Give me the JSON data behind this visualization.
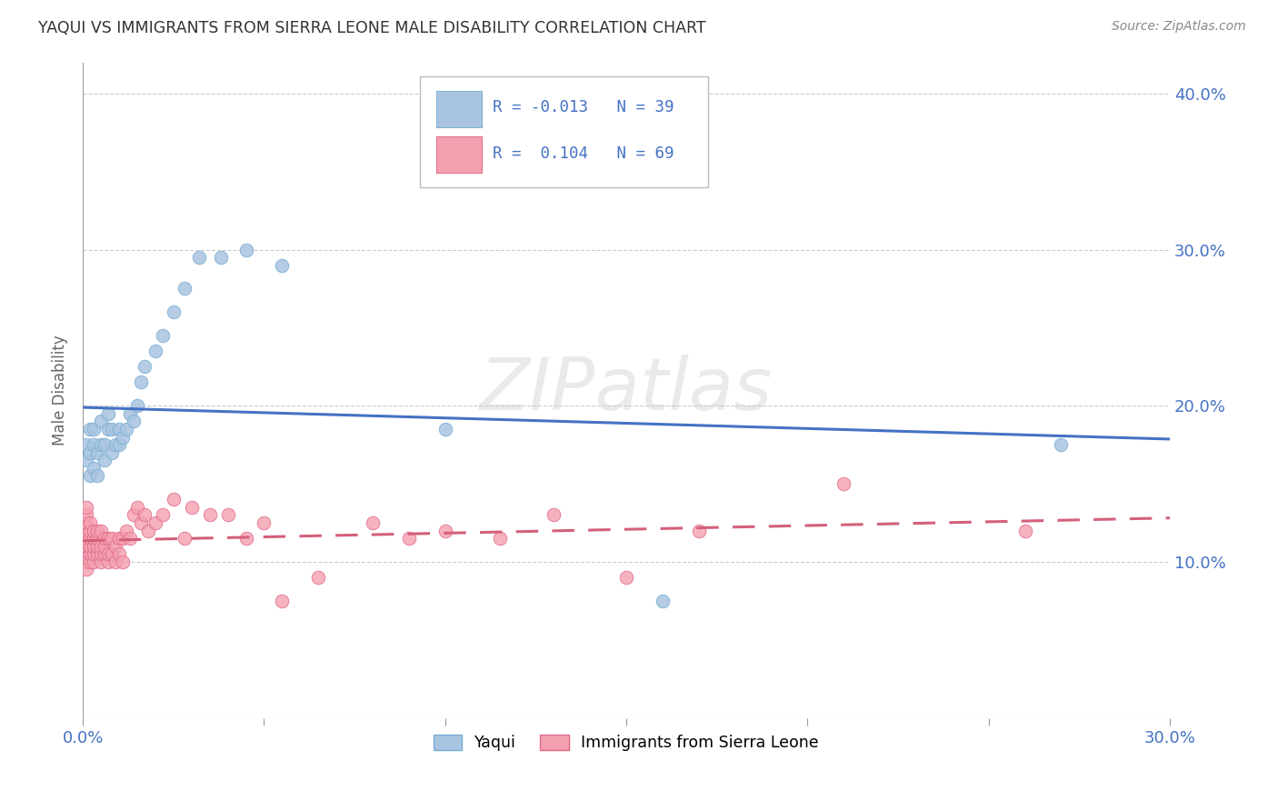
{
  "title": "YAQUI VS IMMIGRANTS FROM SIERRA LEONE MALE DISABILITY CORRELATION CHART",
  "source": "Source: ZipAtlas.com",
  "ylabel": "Male Disability",
  "xlim": [
    0.0,
    0.3
  ],
  "ylim": [
    0.0,
    0.42
  ],
  "yaqui_color": "#a8c4e0",
  "yaqui_edge_color": "#7aafd4",
  "sierra_leone_color": "#f4a0b0",
  "sierra_leone_edge_color": "#e06888",
  "yaqui_line_color": "#4472c4",
  "sierra_leone_line_color": "#d4607a",
  "grid_color": "#cccccc",
  "background_color": "#ffffff",
  "axis_label_color": "#4472c4",
  "watermark": "ZIPatlas",
  "R1": "-0.013",
  "N1": "39",
  "R2": "0.104",
  "N2": "69",
  "yaqui_x": [
    0.001,
    0.001,
    0.002,
    0.002,
    0.002,
    0.003,
    0.003,
    0.003,
    0.004,
    0.004,
    0.005,
    0.005,
    0.006,
    0.006,
    0.007,
    0.007,
    0.008,
    0.008,
    0.009,
    0.01,
    0.01,
    0.011,
    0.012,
    0.013,
    0.014,
    0.015,
    0.016,
    0.017,
    0.02,
    0.022,
    0.025,
    0.028,
    0.032,
    0.038,
    0.045,
    0.055,
    0.1,
    0.16,
    0.27
  ],
  "yaqui_y": [
    0.165,
    0.175,
    0.155,
    0.17,
    0.185,
    0.16,
    0.175,
    0.185,
    0.155,
    0.17,
    0.175,
    0.19,
    0.165,
    0.175,
    0.185,
    0.195,
    0.17,
    0.185,
    0.175,
    0.175,
    0.185,
    0.18,
    0.185,
    0.195,
    0.19,
    0.2,
    0.215,
    0.225,
    0.235,
    0.245,
    0.26,
    0.275,
    0.295,
    0.295,
    0.3,
    0.29,
    0.185,
    0.075,
    0.175
  ],
  "sierra_leone_x": [
    0.001,
    0.001,
    0.001,
    0.001,
    0.001,
    0.001,
    0.001,
    0.001,
    0.001,
    0.002,
    0.002,
    0.002,
    0.002,
    0.002,
    0.002,
    0.003,
    0.003,
    0.003,
    0.003,
    0.003,
    0.004,
    0.004,
    0.004,
    0.004,
    0.005,
    0.005,
    0.005,
    0.005,
    0.006,
    0.006,
    0.006,
    0.007,
    0.007,
    0.007,
    0.008,
    0.008,
    0.009,
    0.009,
    0.01,
    0.01,
    0.011,
    0.011,
    0.012,
    0.013,
    0.014,
    0.015,
    0.016,
    0.017,
    0.018,
    0.02,
    0.022,
    0.025,
    0.028,
    0.03,
    0.035,
    0.04,
    0.045,
    0.05,
    0.055,
    0.065,
    0.08,
    0.09,
    0.1,
    0.115,
    0.13,
    0.15,
    0.17,
    0.21,
    0.26
  ],
  "sierra_leone_y": [
    0.115,
    0.12,
    0.125,
    0.13,
    0.135,
    0.105,
    0.11,
    0.1,
    0.095,
    0.1,
    0.105,
    0.11,
    0.115,
    0.12,
    0.125,
    0.1,
    0.105,
    0.11,
    0.115,
    0.12,
    0.105,
    0.11,
    0.115,
    0.12,
    0.1,
    0.105,
    0.11,
    0.12,
    0.105,
    0.11,
    0.115,
    0.1,
    0.105,
    0.115,
    0.105,
    0.115,
    0.1,
    0.11,
    0.105,
    0.115,
    0.1,
    0.115,
    0.12,
    0.115,
    0.13,
    0.135,
    0.125,
    0.13,
    0.12,
    0.125,
    0.13,
    0.14,
    0.115,
    0.135,
    0.13,
    0.13,
    0.115,
    0.125,
    0.075,
    0.09,
    0.125,
    0.115,
    0.12,
    0.115,
    0.13,
    0.09,
    0.12,
    0.15,
    0.12
  ]
}
